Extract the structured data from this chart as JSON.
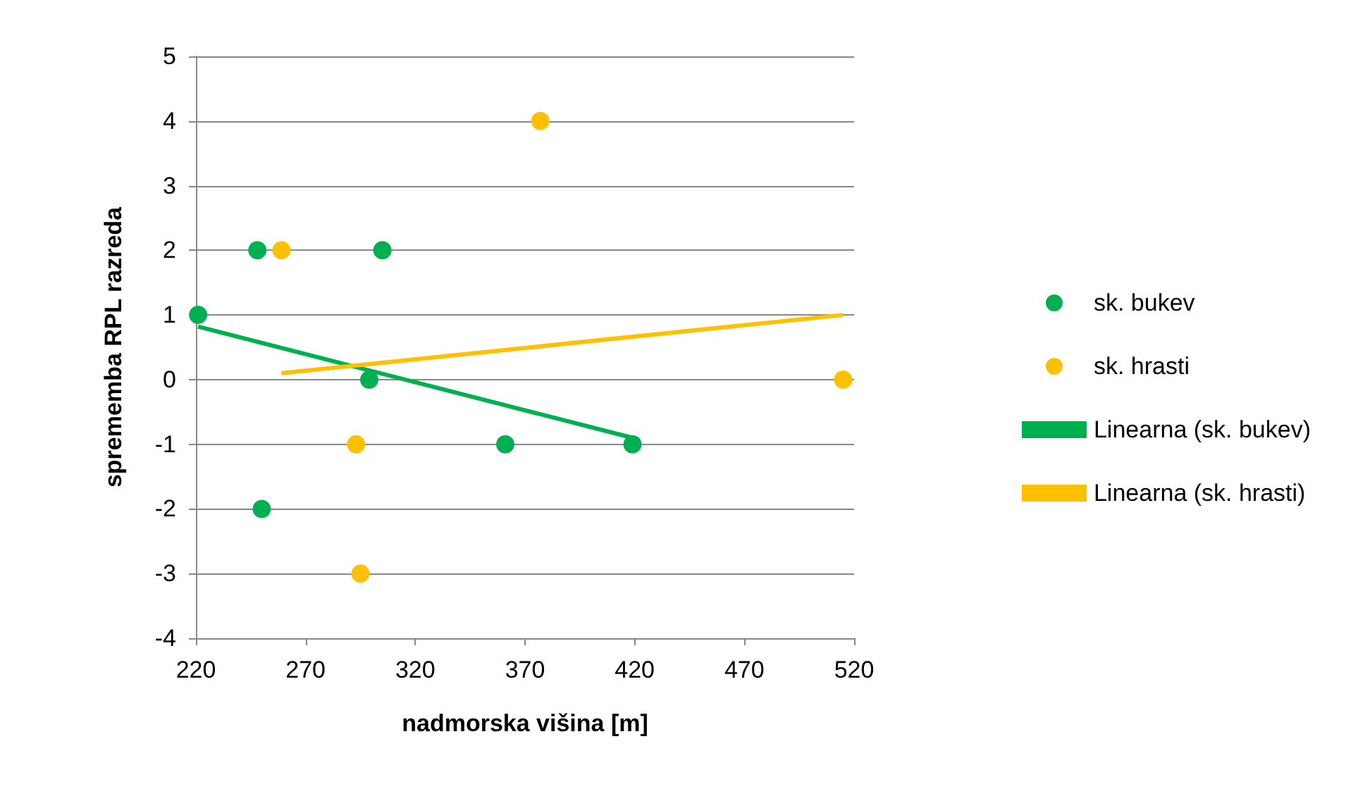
{
  "chart_data": {
    "type": "scatter",
    "xlabel": "nadmorska višina [m]",
    "ylabel": "sprememba RPL razreda",
    "xlim": [
      220,
      520
    ],
    "xticks": [
      220,
      270,
      320,
      370,
      420,
      470,
      520
    ],
    "ylim": [
      -4,
      5
    ],
    "yticks": [
      -4,
      -3,
      -2,
      -1,
      0,
      1,
      2,
      3,
      4,
      5
    ],
    "grid": "y",
    "legend": "right",
    "series": [
      {
        "name": "sk. bukev",
        "color": "#00b050",
        "marker": "circle",
        "x": [
          221,
          248,
          250,
          305,
          299,
          361,
          419
        ],
        "values": [
          1,
          2,
          -2,
          2,
          0,
          -1,
          -1
        ]
      },
      {
        "name": "sk. hrasti",
        "color": "#ffc000",
        "marker": "circle",
        "x": [
          259,
          293,
          295,
          377,
          515
        ],
        "values": [
          2,
          -1,
          -3,
          4,
          0
        ]
      },
      {
        "name": "Linearna (sk. bukev)",
        "type": "line",
        "marker": "none",
        "color": "#00b050",
        "x": [
          221,
          419
        ],
        "values": [
          0.82,
          -0.9
        ]
      },
      {
        "name": "Linearna (sk. hrasti)",
        "type": "line",
        "marker": "none",
        "color": "#ffc000",
        "x": [
          259,
          515
        ],
        "values": [
          0.1,
          1.0
        ]
      }
    ]
  }
}
